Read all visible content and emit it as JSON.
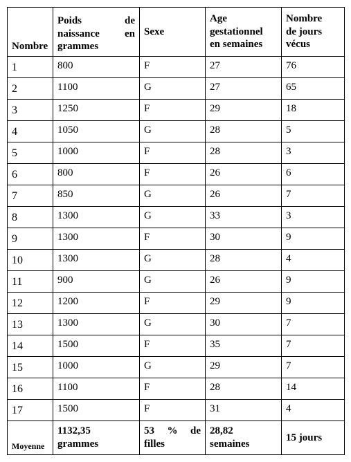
{
  "columns": {
    "nombre": "Nombre",
    "poids_line1": "Poids de",
    "poids_line2": "naissance en",
    "poids_line3": "grammes",
    "sexe": "Sexe",
    "age_line1": "Age",
    "age_line2": "gestationnel",
    "age_line3": "en semaines",
    "jours_line1": "Nombre",
    "jours_line2": "de  jours",
    "jours_line3": "vécus"
  },
  "rows": [
    {
      "n": "1",
      "poids": "800",
      "sexe": "F",
      "age": "27",
      "jours": "76"
    },
    {
      "n": "2",
      "poids": "1100",
      "sexe": "G",
      "age": "27",
      "jours": "65"
    },
    {
      "n": "3",
      "poids": "1250",
      "sexe": "F",
      "age": "29",
      "jours": "18"
    },
    {
      "n": "4",
      "poids": "1050",
      "sexe": "G",
      "age": "28",
      "jours": "5"
    },
    {
      "n": "5",
      "poids": "1000",
      "sexe": "F",
      "age": "28",
      "jours": "3"
    },
    {
      "n": "6",
      "poids": "800",
      "sexe": "F",
      "age": "26",
      "jours": "6"
    },
    {
      "n": "7",
      "poids": "850",
      "sexe": "G",
      "age": "26",
      "jours": "7"
    },
    {
      "n": "8",
      "poids": "1300",
      "sexe": "G",
      "age": "33",
      "jours": "3"
    },
    {
      "n": "9",
      "poids": "1300",
      "sexe": "F",
      "age": "30",
      "jours": "9"
    },
    {
      "n": "10",
      "poids": "1300",
      "sexe": "G",
      "age": "28",
      "jours": "4"
    },
    {
      "n": "11",
      "poids": "900",
      "sexe": "G",
      "age": "26",
      "jours": "9"
    },
    {
      "n": "12",
      "poids": "1200",
      "sexe": "F",
      "age": "29",
      "jours": "9"
    },
    {
      "n": "13",
      "poids": "1300",
      "sexe": "G",
      "age": "30",
      "jours": "7"
    },
    {
      "n": "14",
      "poids": "1500",
      "sexe": "F",
      "age": "35",
      "jours": "7"
    },
    {
      "n": "15",
      "poids": "1000",
      "sexe": "G",
      "age": "29",
      "jours": "7"
    },
    {
      "n": "16",
      "poids": "1100",
      "sexe": "F",
      "age": "28",
      "jours": "14"
    },
    {
      "n": "17",
      "poids": "1500",
      "sexe": "F",
      "age": "31",
      "jours": "4"
    }
  ],
  "footer": {
    "label": "Moyenne",
    "poids_line1": "1132,35",
    "poids_line2": "grammes",
    "sexe_line1": "53 % de",
    "sexe_line2": "filles",
    "age_line1": "28,82",
    "age_line2": "semaines",
    "jours": "15 jours"
  }
}
